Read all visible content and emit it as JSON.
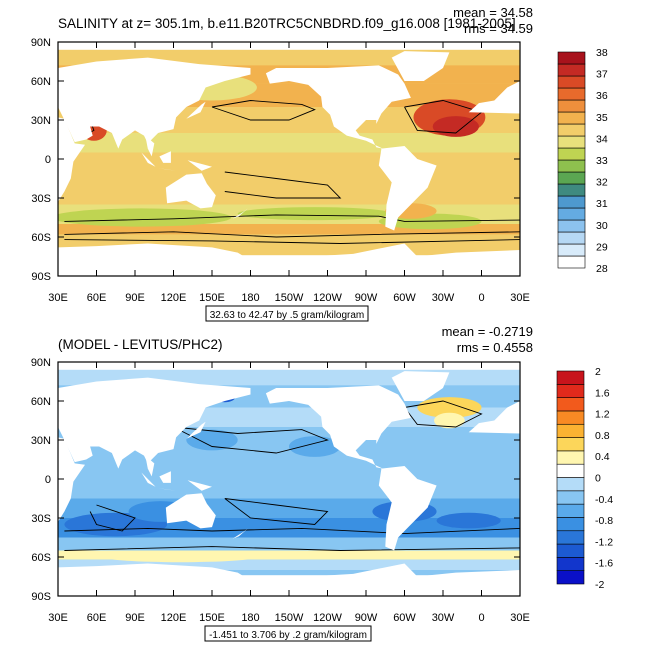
{
  "chart_data": [
    {
      "type": "heatmap",
      "title": "SALINITY at z= 305.1m, b.e11.B20TRC5CNBDRD.f09_g16.008 [1981-2005]",
      "mean_text": "mean = 34.58",
      "rms_text": "rms = 34.59",
      "x_tick_labels": [
        "30E",
        "60E",
        "90E",
        "120E",
        "150E",
        "180",
        "150W",
        "120W",
        "90W",
        "60W",
        "30W",
        "0",
        "30E"
      ],
      "y_tick_labels": [
        "90N",
        "60N",
        "30N",
        "0",
        "30S",
        "60S",
        "90S"
      ],
      "xlim": [
        30,
        390
      ],
      "ylim": [
        -90,
        90
      ],
      "colorbar_labels": [
        "38",
        "37",
        "36",
        "35",
        "34",
        "33",
        "32",
        "31",
        "30",
        "29",
        "28"
      ],
      "contour_info": "32.63 to 42.47 by .5 gram/kilogram",
      "colors": [
        "#ffffff",
        "#d8ebfa",
        "#b6d8f4",
        "#8cc2ee",
        "#64abe2",
        "#4e99cf",
        "#3f8a80",
        "#5ba652",
        "#8ec04e",
        "#bfd452",
        "#e8e07c",
        "#f2cd6a",
        "#f2b24e",
        "#ee8f3c",
        "#e86a2c",
        "#d94a26",
        "#c42a24",
        "#a8121c",
        "#f09090"
      ],
      "ocean_color": "#f2cd6a"
    },
    {
      "type": "heatmap",
      "title": "(MODEL - LEVITUS/PHC2)",
      "mean_text": "mean = -0.2719",
      "rms_text": "rms = 0.4558",
      "x_tick_labels": [
        "30E",
        "60E",
        "90E",
        "120E",
        "150E",
        "180",
        "150W",
        "120W",
        "90W",
        "60W",
        "30W",
        "0",
        "30E"
      ],
      "y_tick_labels": [
        "90N",
        "60N",
        "30N",
        "0",
        "30S",
        "60S",
        "90S"
      ],
      "xlim": [
        30,
        390
      ],
      "ylim": [
        -90,
        90
      ],
      "colorbar_labels": [
        "2",
        "1.6",
        "1.2",
        "0.8",
        "0.4",
        "0",
        "-0.4",
        "-0.8",
        "-1.2",
        "-1.6",
        "-2"
      ],
      "contour_info": "-1.451 to 3.706 by .2 gram/kilogram",
      "colors": [
        "#c8141c",
        "#e02a1c",
        "#f25a1c",
        "#f88a24",
        "#fbb232",
        "#fcd65a",
        "#fff6b0",
        "#ffffff",
        "#b4dcf8",
        "#88c6f2",
        "#5aaaea",
        "#3a90e2",
        "#2a76d8",
        "#1c5ad2",
        "#1236cc",
        "#0a10c8"
      ],
      "ocean_color": "#88c6f2"
    }
  ]
}
